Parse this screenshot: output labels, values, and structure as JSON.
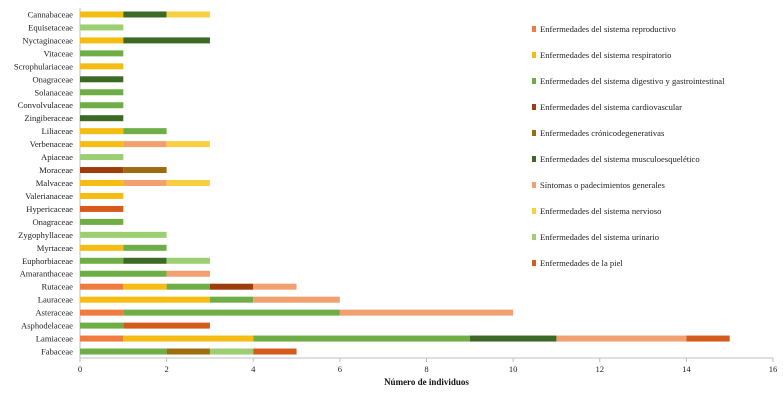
{
  "chart_data": {
    "type": "bar",
    "orientation": "horizontal",
    "stacked": true,
    "xlabel": "Número de individuos",
    "ylabel": "",
    "xlim": [
      0,
      16
    ],
    "xticks": [
      0,
      2,
      4,
      6,
      8,
      10,
      12,
      14,
      16
    ],
    "grid": false,
    "legend_position": "right",
    "categories": [
      "Cannabaceae",
      "Equisetaceae",
      "Nyctaginaceae",
      "Vitaceae",
      "Scrophulariaceae",
      "Onagraceae",
      "Solanaceae",
      "Convolvulaceae",
      "Zingiberaceae",
      "Liliaceae",
      "Verbenaceae",
      "Apiaceae",
      "Moraceae",
      "Malvaceae",
      "Valerianaceae",
      "Hypericaceae",
      "Onagraceae",
      "Zygophyllaceae",
      "Myrtaceae",
      "Euphorbiaceae",
      "Amaranthaceae",
      "Rutaceae",
      "Lauraceae",
      "Asteraceae",
      "Asphodelaceae",
      "Lamiaceae",
      "Fabaceae"
    ],
    "series": [
      {
        "name": "Enfermedades del sistema reproductivo",
        "color": "#ef7c3e",
        "values": [
          0,
          0,
          0,
          0,
          0,
          0,
          0,
          0,
          0,
          0,
          0,
          0,
          0,
          0,
          0,
          0,
          0,
          0,
          0,
          0,
          0,
          1,
          0,
          1,
          0,
          1,
          0
        ]
      },
      {
        "name": "Enfermedades del sistema respiratorio",
        "color": "#f5bd14",
        "values": [
          1,
          0,
          1,
          0,
          1,
          0,
          0,
          0,
          0,
          1,
          1,
          0,
          0,
          1,
          1,
          0,
          0,
          0,
          1,
          0,
          0,
          1,
          3,
          0,
          0,
          3,
          0
        ]
      },
      {
        "name": "Enfermedades del sistema digestivo y gastrointestinal",
        "color": "#6fad47",
        "values": [
          0,
          0,
          0,
          1,
          0,
          0,
          1,
          1,
          0,
          1,
          0,
          0,
          0,
          0,
          0,
          0,
          1,
          0,
          1,
          1,
          2,
          1,
          1,
          5,
          1,
          5,
          2
        ]
      },
      {
        "name": "Enfermedades del sistema cardiovascular",
        "color": "#9c3d0b",
        "values": [
          0,
          0,
          0,
          0,
          0,
          0,
          0,
          0,
          0,
          0,
          0,
          0,
          1,
          0,
          0,
          0,
          0,
          0,
          0,
          0,
          0,
          1,
          0,
          0,
          0,
          0,
          0
        ]
      },
      {
        "name": "Enfermedades crónicodegenerativas",
        "color": "#9b6d10",
        "values": [
          0,
          0,
          0,
          0,
          0,
          0,
          0,
          0,
          0,
          0,
          0,
          0,
          1,
          0,
          0,
          0,
          0,
          0,
          0,
          0,
          0,
          0,
          0,
          0,
          0,
          0,
          1
        ]
      },
      {
        "name": "Enfermedades del sistema musculoesquelético",
        "color": "#3c6a26",
        "values": [
          1,
          0,
          2,
          0,
          0,
          1,
          0,
          0,
          1,
          0,
          0,
          0,
          0,
          0,
          0,
          0,
          0,
          0,
          0,
          1,
          0,
          0,
          0,
          0,
          0,
          2,
          0
        ]
      },
      {
        "name": "Síntomas o padecimientos generales",
        "color": "#f2a070",
        "values": [
          0,
          0,
          0,
          0,
          0,
          0,
          0,
          0,
          0,
          0,
          1,
          0,
          0,
          1,
          0,
          0,
          0,
          0,
          0,
          0,
          1,
          1,
          2,
          4,
          0,
          3,
          0
        ]
      },
      {
        "name": "Enfermedades del sistema nervioso",
        "color": "#f8cf40",
        "values": [
          1,
          0,
          0,
          0,
          0,
          0,
          0,
          0,
          0,
          0,
          1,
          0,
          0,
          1,
          0,
          0,
          0,
          0,
          0,
          0,
          0,
          0,
          0,
          0,
          0,
          0,
          0
        ]
      },
      {
        "name": "Enfermedades del sistema urinario",
        "color": "#9ccf72",
        "values": [
          0,
          1,
          0,
          0,
          0,
          0,
          0,
          0,
          0,
          0,
          0,
          1,
          0,
          0,
          0,
          0,
          0,
          2,
          0,
          1,
          0,
          0,
          0,
          0,
          0,
          0,
          1
        ]
      },
      {
        "name": "Enfermedades de la piel",
        "color": "#d45b1b",
        "values": [
          0,
          0,
          0,
          0,
          0,
          0,
          0,
          0,
          0,
          0,
          0,
          0,
          0,
          0,
          0,
          1,
          0,
          0,
          0,
          0,
          0,
          0,
          0,
          0,
          2,
          1,
          1
        ]
      }
    ]
  }
}
